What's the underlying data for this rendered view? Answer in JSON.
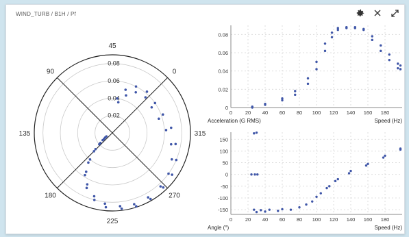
{
  "breadcrumb": "WIND_TURB / B1H / Pf",
  "toolbar": {
    "settings_icon": "gear-icon",
    "close_icon": "close-icon",
    "expand_icon": "expand-icon"
  },
  "accent_color": "#3f56a8",
  "chart_data": [
    {
      "type": "scatter",
      "subtype": "polar",
      "angle_labels": [
        "45",
        "0",
        "315",
        "270",
        "225",
        "180",
        "135",
        "90"
      ],
      "radial_ticks": [
        0.02,
        0.04,
        0.06,
        0.08
      ],
      "rlim": [
        0,
        0.09
      ],
      "series": [
        {
          "points": [
            [
              37,
              0.04
            ],
            [
              28,
              0.052
            ],
            [
              18,
              0.06
            ],
            [
              5,
              0.062
            ],
            [
              350,
              0.06
            ],
            [
              335,
              0.062
            ],
            [
              320,
              0.068
            ],
            [
              305,
              0.074
            ],
            [
              292,
              0.08
            ],
            [
              280,
              0.084
            ],
            [
              268,
              0.086
            ],
            [
              255,
              0.088
            ],
            [
              243,
              0.089
            ],
            [
              232,
              0.088
            ],
            [
              220,
              0.086
            ],
            [
              210,
              0.08
            ],
            [
              200,
              0.07
            ],
            [
              192,
              0.058
            ],
            [
              186,
              0.044
            ],
            [
              180,
              0.03
            ],
            [
              176,
              0.02
            ],
            [
              172,
              0.014
            ],
            [
              168,
              0.01
            ]
          ]
        },
        {
          "points": [
            [
              34,
              0.036
            ],
            [
              25,
              0.046
            ],
            [
              15,
              0.054
            ],
            [
              2,
              0.056
            ],
            [
              348,
              0.054
            ],
            [
              332,
              0.056
            ],
            [
              318,
              0.062
            ],
            [
              304,
              0.069
            ],
            [
              291,
              0.075
            ],
            [
              279,
              0.08
            ],
            [
              267,
              0.083
            ],
            [
              254,
              0.085
            ],
            [
              242,
              0.086
            ],
            [
              231,
              0.085
            ],
            [
              219,
              0.082
            ],
            [
              209,
              0.076
            ],
            [
              199,
              0.066
            ],
            [
              191,
              0.054
            ],
            [
              185,
              0.04
            ],
            [
              179,
              0.027
            ],
            [
              175,
              0.018
            ],
            [
              171,
              0.012
            ],
            [
              166,
              0.008
            ]
          ]
        }
      ]
    },
    {
      "type": "scatter",
      "xlabel": "Speed (Hz)",
      "ylabel": "Acceleration (G RMS)",
      "xlim": [
        0,
        200
      ],
      "ylim": [
        0,
        0.09
      ],
      "xticks": [
        0,
        20,
        40,
        60,
        80,
        100,
        120,
        140,
        160,
        180
      ],
      "yticks": [
        0,
        0.02,
        0.04,
        0.06,
        0.08
      ],
      "ytick_labels": [
        "0",
        "0.02",
        "0.04",
        "0.06",
        "0.08"
      ],
      "series": [
        {
          "points": [
            [
              25,
              0.001
            ],
            [
              40,
              0.004
            ],
            [
              60,
              0.01
            ],
            [
              75,
              0.018
            ],
            [
              90,
              0.032
            ],
            [
              100,
              0.05
            ],
            [
              110,
              0.07
            ],
            [
              118,
              0.082
            ],
            [
              125,
              0.087
            ],
            [
              135,
              0.088
            ],
            [
              145,
              0.088
            ],
            [
              155,
              0.086
            ],
            [
              165,
              0.078
            ],
            [
              175,
              0.068
            ],
            [
              185,
              0.058
            ],
            [
              195,
              0.048
            ],
            [
              198,
              0.046
            ]
          ]
        },
        {
          "points": [
            [
              25,
              0.0
            ],
            [
              40,
              0.003
            ],
            [
              60,
              0.008
            ],
            [
              75,
              0.014
            ],
            [
              90,
              0.026
            ],
            [
              100,
              0.042
            ],
            [
              110,
              0.062
            ],
            [
              118,
              0.077
            ],
            [
              125,
              0.085
            ],
            [
              135,
              0.087
            ],
            [
              145,
              0.087
            ],
            [
              155,
              0.085
            ],
            [
              165,
              0.074
            ],
            [
              175,
              0.062
            ],
            [
              185,
              0.052
            ],
            [
              195,
              0.043
            ],
            [
              198,
              0.042
            ]
          ]
        }
      ]
    },
    {
      "type": "scatter",
      "xlabel": "Speed (Hz)",
      "ylabel": "Angle (°)",
      "xlim": [
        0,
        200
      ],
      "ylim": [
        -170,
        180
      ],
      "xticks": [
        0,
        20,
        40,
        60,
        80,
        100,
        120,
        140,
        160,
        180
      ],
      "yticks": [
        -150,
        -100,
        -50,
        0,
        50,
        100,
        150
      ],
      "ytick_labels": [
        "-150",
        "-100",
        "-50",
        "0",
        "50",
        "100",
        "150"
      ],
      "series": [
        {
          "points": [
            [
              27,
              175
            ],
            [
              30,
              178
            ],
            [
              24,
              0
            ],
            [
              28,
              0
            ],
            [
              31,
              0
            ],
            [
              27,
              -150
            ],
            [
              35,
              -152
            ],
            [
              45,
              -150
            ],
            [
              60,
              -148
            ],
            [
              80,
              -140
            ],
            [
              95,
              -115
            ],
            [
              105,
              -80
            ],
            [
              115,
              -50
            ],
            [
              125,
              -20
            ],
            [
              140,
              15
            ],
            [
              160,
              45
            ],
            [
              180,
              80
            ],
            [
              198,
              110
            ]
          ]
        },
        {
          "points": [
            [
              30,
              -160
            ],
            [
              40,
              -158
            ],
            [
              55,
              -155
            ],
            [
              70,
              -150
            ],
            [
              88,
              -128
            ],
            [
              100,
              -95
            ],
            [
              112,
              -58
            ],
            [
              122,
              -28
            ],
            [
              138,
              5
            ],
            [
              158,
              38
            ],
            [
              178,
              72
            ],
            [
              198,
              106
            ]
          ]
        }
      ]
    }
  ]
}
